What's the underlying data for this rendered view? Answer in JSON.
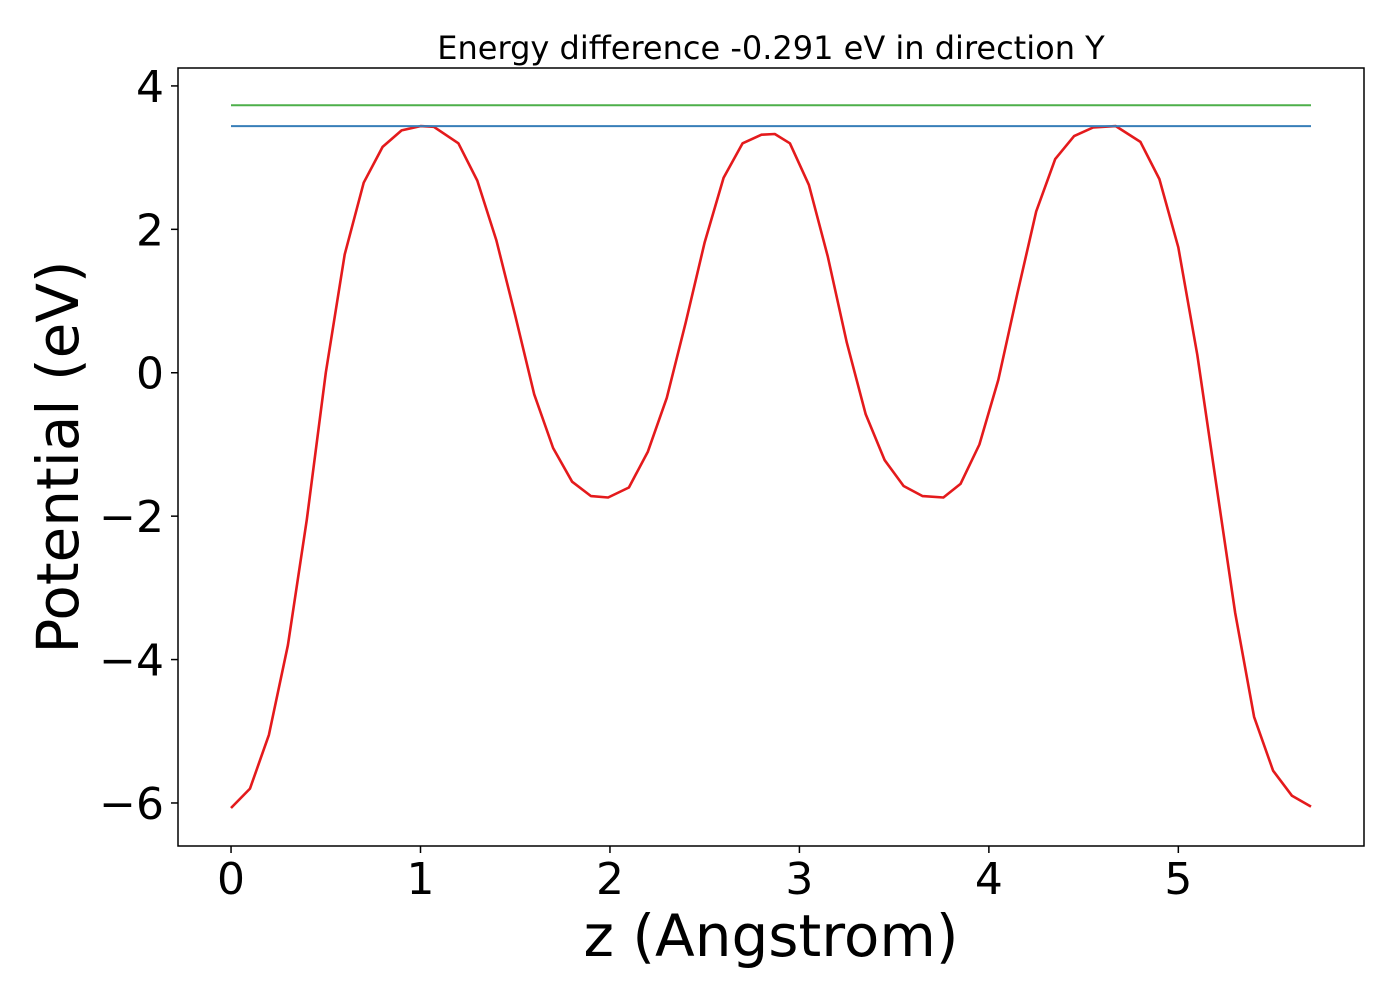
{
  "chart_data": {
    "type": "line",
    "title": "Energy difference -0.291 eV in direction Y",
    "xlabel": "z (Angstrom)",
    "ylabel": "Potential (eV)",
    "xlim": [
      -0.28,
      5.98
    ],
    "ylim": [
      -6.6,
      4.25
    ],
    "xticks": [
      0,
      1,
      2,
      3,
      4,
      5
    ],
    "xtick_labels": [
      "0",
      "1",
      "2",
      "3",
      "4",
      "5"
    ],
    "yticks": [
      -6,
      -4,
      -2,
      0,
      2,
      4
    ],
    "ytick_labels": [
      "−6",
      "−4",
      "−2",
      "0",
      "2",
      "4"
    ],
    "grid": false,
    "legend": "none",
    "series": [
      {
        "color": "#e41a1c",
        "x": [
          0.0,
          0.1,
          0.2,
          0.3,
          0.4,
          0.5,
          0.6,
          0.7,
          0.8,
          0.9,
          1.0,
          1.07,
          1.2,
          1.3,
          1.4,
          1.5,
          1.6,
          1.7,
          1.8,
          1.9,
          1.99,
          2.1,
          2.2,
          2.3,
          2.4,
          2.5,
          2.6,
          2.7,
          2.8,
          2.87,
          2.95,
          3.05,
          3.15,
          3.25,
          3.35,
          3.45,
          3.55,
          3.65,
          3.76,
          3.85,
          3.95,
          4.05,
          4.15,
          4.25,
          4.35,
          4.45,
          4.55,
          4.67,
          4.8,
          4.9,
          5.0,
          5.1,
          5.2,
          5.3,
          5.4,
          5.5,
          5.6,
          5.7
        ],
        "y": [
          -6.07,
          -5.8,
          -5.05,
          -3.8,
          -2.05,
          0.0,
          1.65,
          2.65,
          3.15,
          3.38,
          3.44,
          3.43,
          3.2,
          2.68,
          1.85,
          0.8,
          -0.3,
          -1.05,
          -1.52,
          -1.72,
          -1.74,
          -1.6,
          -1.1,
          -0.35,
          0.7,
          1.82,
          2.72,
          3.2,
          3.32,
          3.33,
          3.2,
          2.62,
          1.62,
          0.42,
          -0.58,
          -1.22,
          -1.58,
          -1.72,
          -1.74,
          -1.55,
          -1.0,
          -0.1,
          1.1,
          2.25,
          2.98,
          3.3,
          3.42,
          3.44,
          3.22,
          2.7,
          1.75,
          0.25,
          -1.55,
          -3.35,
          -4.8,
          -5.55,
          -5.9,
          -6.05
        ]
      },
      {
        "color": "#377eb8",
        "x": [
          0.0,
          5.7
        ],
        "y": [
          3.44,
          3.44
        ]
      },
      {
        "color": "#4daf4a",
        "x": [
          0.0,
          5.7
        ],
        "y": [
          3.73,
          3.73
        ]
      }
    ]
  }
}
